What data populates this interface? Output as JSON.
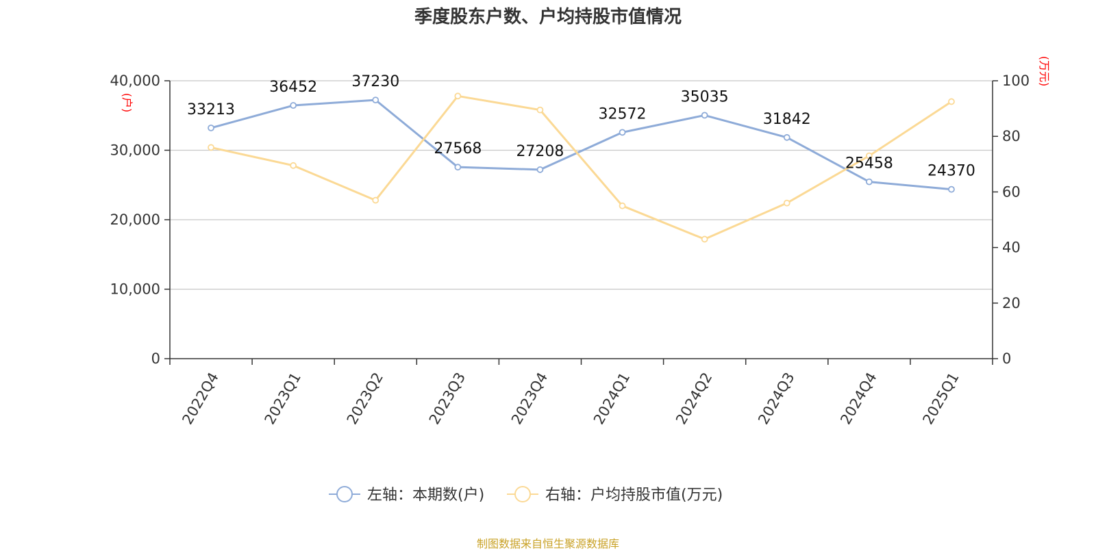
{
  "chart_data": {
    "type": "line",
    "title": "季度股东户数、户均持股市值情况",
    "categories": [
      "2022Q4",
      "2023Q1",
      "2023Q2",
      "2023Q3",
      "2023Q4",
      "2024Q1",
      "2024Q2",
      "2024Q3",
      "2024Q4",
      "2025Q1"
    ],
    "series": [
      {
        "name": "左轴：本期数(户)",
        "axis": "left",
        "color": "#8eabd8",
        "values": [
          33213,
          36452,
          37230,
          27568,
          27208,
          32572,
          35035,
          31842,
          25458,
          24370
        ],
        "show_labels": true
      },
      {
        "name": "右轴：户均持股市值(万元)",
        "axis": "right",
        "color": "#fbd995",
        "values": [
          76,
          69.5,
          57,
          94.5,
          89.5,
          55,
          43,
          56,
          73,
          92.5
        ],
        "show_labels": false
      }
    ],
    "y_left": {
      "label": "(户)",
      "label_color": "#ff0000",
      "range": [
        0,
        40000
      ],
      "ticks": [
        "0",
        "10,000",
        "20,000",
        "30,000",
        "40,000"
      ],
      "tick_values": [
        0,
        10000,
        20000,
        30000,
        40000
      ]
    },
    "y_right": {
      "label": "(万元)",
      "label_color": "#ff0000",
      "range": [
        0,
        100
      ],
      "ticks": [
        "0",
        "20",
        "40",
        "60",
        "80",
        "100"
      ],
      "tick_values": [
        0,
        20,
        40,
        60,
        80,
        100
      ]
    },
    "grid": true,
    "legend_position": "bottom-center",
    "source": "制图数据来自恒生聚源数据库",
    "source_color": "#c9a227"
  }
}
